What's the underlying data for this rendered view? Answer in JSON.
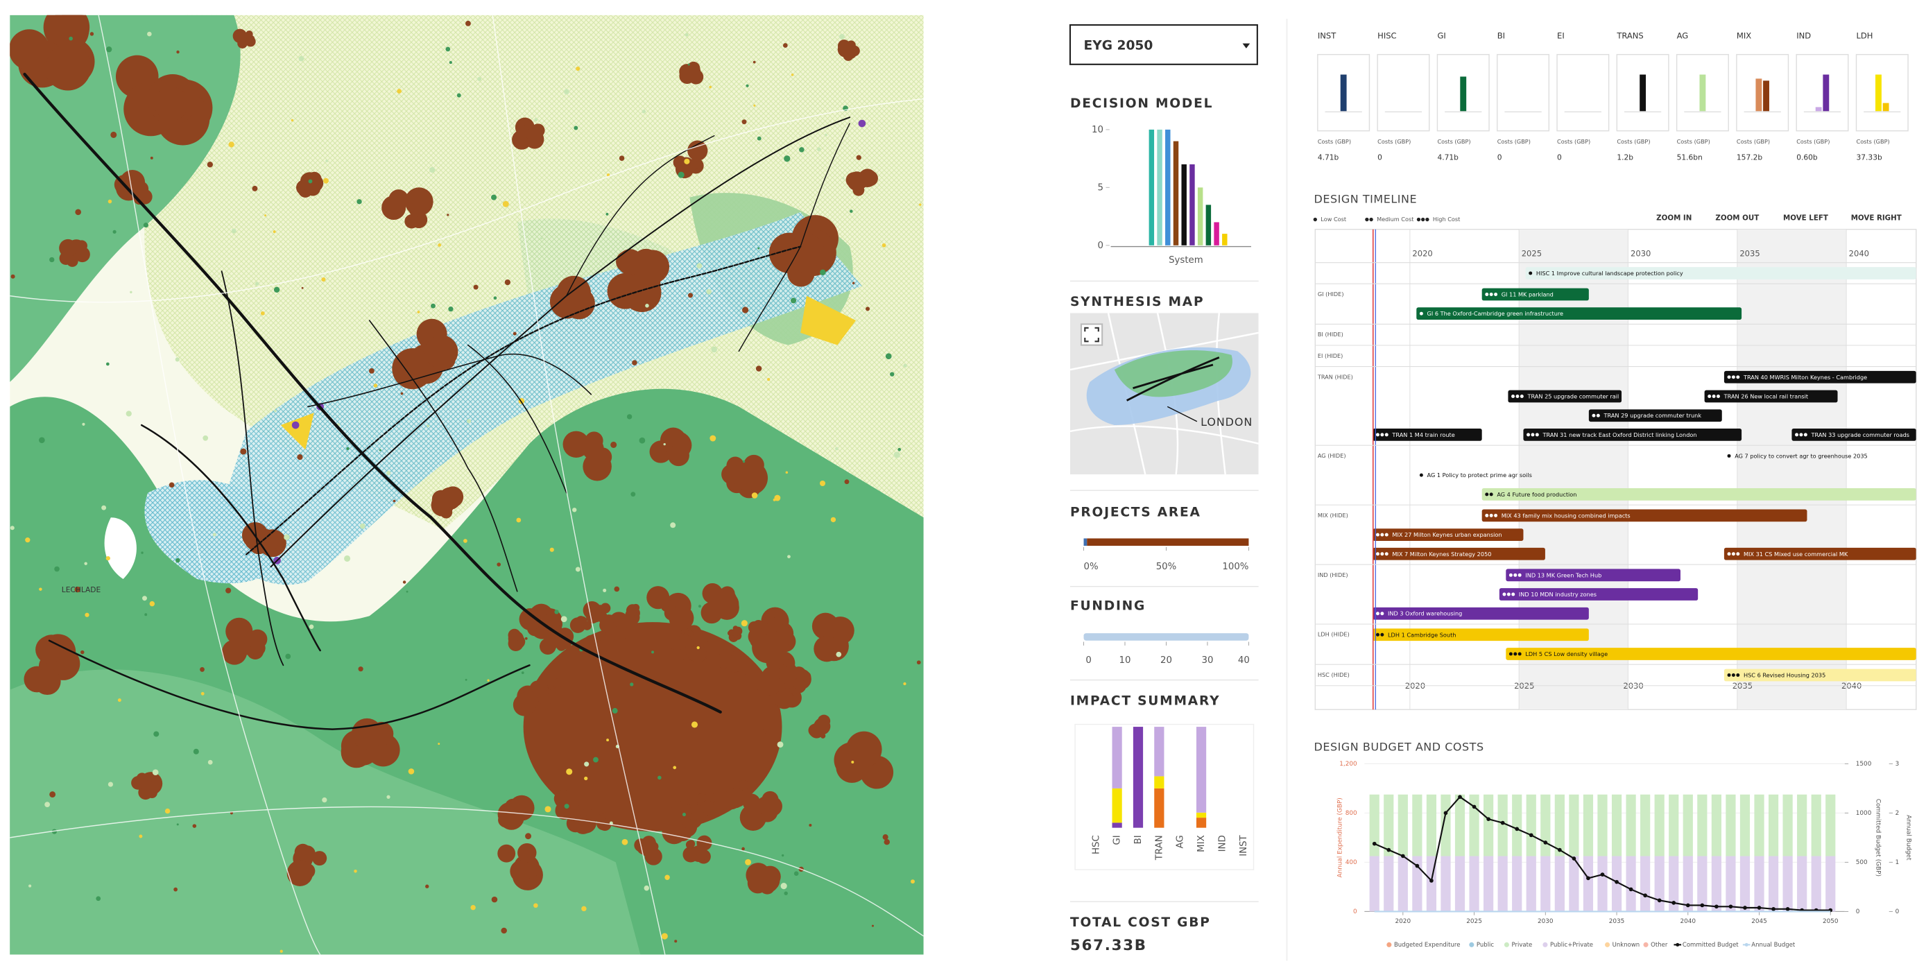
{
  "scenario": "EYG 2050",
  "map": {
    "labels": [
      "LECHLADE"
    ]
  },
  "decision_model": {
    "title": "DECISION MODEL",
    "type": "bar",
    "category": "System",
    "ylim": [
      0,
      10
    ],
    "yticks": [
      0,
      5,
      10
    ],
    "values": [
      10,
      10,
      10,
      9,
      7,
      7,
      5,
      3.5,
      2,
      1
    ],
    "colors": [
      "#2ab5a5",
      "#8ad8c8",
      "#3f8fd8",
      "#8b4513",
      "#111111",
      "#6a2ea0",
      "#b8e08a",
      "#0b6b3a",
      "#d81b9a",
      "#f5d000"
    ]
  },
  "synthesis_map": {
    "title": "SYNTHESIS MAP",
    "label": "LONDON"
  },
  "projects_area": {
    "title": "PROJECTS AREA",
    "xlim": [
      0,
      100
    ],
    "xticks": [
      {
        "value": 0,
        "label": "0%"
      },
      {
        "value": 50,
        "label": "50%"
      },
      {
        "value": 100,
        "label": "100%"
      }
    ],
    "values": [
      2,
      98
    ],
    "colors": [
      "#3f6fb0",
      "#8b3a0f"
    ]
  },
  "funding": {
    "title": "FUNDING",
    "xlim": [
      0,
      40
    ],
    "xticks": [
      0,
      10,
      20,
      30,
      40
    ],
    "value": 40,
    "color": "#b9d0e8"
  },
  "impact_summary": {
    "title": "IMPACT SUMMARY",
    "type": "bar",
    "categories": [
      "HSC",
      "GI",
      "BI",
      "TRAN",
      "AG",
      "MIX",
      "IND",
      "INST"
    ],
    "ylim": [
      0,
      100
    ],
    "series": [
      {
        "color": "#7b3fb0",
        "values": [
          0,
          5,
          100,
          0,
          0,
          0,
          0,
          0
        ]
      },
      {
        "color": "#e8701a",
        "values": [
          0,
          0,
          0,
          39,
          0,
          10,
          0,
          0
        ]
      },
      {
        "color": "#f7e400",
        "values": [
          0,
          34,
          0,
          12,
          0,
          5,
          0,
          0
        ]
      },
      {
        "color": "#c4a8e0",
        "values": [
          0,
          61,
          0,
          49,
          0,
          85,
          0,
          0
        ]
      }
    ]
  },
  "total_cost": {
    "label": "TOTAL COST GBP",
    "value": "567.33B"
  },
  "sectors": {
    "cost_label": "Costs (GBP)",
    "ylim": [
      0,
      10
    ],
    "cards": [
      {
        "label": "INST",
        "values": [
          9
        ],
        "colors": [
          "#1f3f6e"
        ],
        "total": "4.71b"
      },
      {
        "label": "HISC",
        "values": [],
        "colors": [],
        "total": "0"
      },
      {
        "label": "GI",
        "values": [
          8.5
        ],
        "colors": [
          "#0b6b3a"
        ],
        "total": "4.71b"
      },
      {
        "label": "BI",
        "values": [],
        "colors": [],
        "total": "0"
      },
      {
        "label": "EI",
        "values": [],
        "colors": [],
        "total": "0"
      },
      {
        "label": "TRANS",
        "values": [
          9
        ],
        "colors": [
          "#111111"
        ],
        "total": "1.2b"
      },
      {
        "label": "AG",
        "values": [
          9
        ],
        "colors": [
          "#b9e29a"
        ],
        "total": "51.6bn"
      },
      {
        "label": "MIX",
        "values": [
          8,
          7.5
        ],
        "colors": [
          "#d98b5a",
          "#8b3a0f"
        ],
        "total": "157.2b"
      },
      {
        "label": "IND",
        "values": [
          1,
          9
        ],
        "colors": [
          "#c9a8e6",
          "#6a2ea0"
        ],
        "total": "0.60b"
      },
      {
        "label": "LDH",
        "values": [
          9,
          2
        ],
        "colors": [
          "#f7e400",
          "#f5c400"
        ],
        "total": "37.33b"
      }
    ]
  },
  "timeline": {
    "title": "DESIGN TIMELINE",
    "cost_levels": [
      "Low Cost",
      "Medium Cost",
      "High Cost"
    ],
    "controls": [
      "ZOOM IN",
      "ZOOM OUT",
      "MOVE LEFT",
      "MOVE RIGHT"
    ],
    "xlim": [
      2018.2,
      2043.2
    ],
    "xticks": [
      2020,
      2025,
      2030,
      2035,
      2040
    ],
    "rows": [
      {
        "lanes": [
          [
            {
              "name": "HISC 1 Improve cultural landscape protection policy",
              "start": 2025.3,
              "end": 2043.2,
              "cost": 1,
              "color": "#e3f3ef"
            }
          ]
        ]
      },
      {
        "label": "GI (HIDE)",
        "lanes": [
          [
            {
              "name": "GI 11 MK parkland",
              "start": 2023.3,
              "end": 2028.2,
              "cost": 3,
              "color": "#0b6b3a"
            }
          ],
          [
            {
              "name": "GI 6 The Oxford-Cambridge green infrastructure",
              "start": 2020.3,
              "end": 2035.2,
              "cost": 1,
              "color": "#0b6b3a"
            }
          ]
        ]
      },
      {
        "label": "BI (HIDE)",
        "lanes": [
          []
        ]
      },
      {
        "label": "EI (HIDE)",
        "lanes": [
          []
        ]
      },
      {
        "label": "TRAN (HIDE)",
        "lanes": [
          [
            {
              "name": "TRAN 40 MWRIS Milton Keynes - Cambridge",
              "start": 2034.4,
              "end": 2043.2,
              "cost": 3,
              "color": "#111111"
            }
          ],
          [
            {
              "name": "TRAN 25 upgrade commuter rail",
              "start": 2024.5,
              "end": 2029.7,
              "cost": 3,
              "color": "#111111"
            },
            {
              "name": "TRAN 26 New local rail transit",
              "start": 2033.5,
              "end": 2039.6,
              "cost": 3,
              "color": "#111111"
            }
          ],
          [
            {
              "name": "TRAN 29 upgrade commuter trunk",
              "start": 2028.2,
              "end": 2034.3,
              "cost": 2,
              "color": "#111111"
            }
          ],
          [
            {
              "name": "TRAN 1 M4 train route",
              "start": 2018.3,
              "end": 2023.3,
              "cost": 3,
              "color": "#111111"
            },
            {
              "name": "TRAN 31 new track East Oxford District linking London",
              "start": 2025.2,
              "end": 2035.2,
              "cost": 3,
              "color": "#111111"
            },
            {
              "name": "TRAN 33 upgrade commuter roads",
              "start": 2037.5,
              "end": 2043.2,
              "cost": 3,
              "color": "#111111"
            }
          ]
        ]
      },
      {
        "label": "AG (HIDE)",
        "lanes": [
          [
            {
              "name": "AG 7 policy to convert agr to greenhouse 2035",
              "start": 2034.4,
              "end": 2034.4,
              "cost": 1,
              "color": "#b9e29a"
            }
          ],
          [
            {
              "name": "AG 1 Policy to protect prime agr soils",
              "start": 2020.3,
              "end": 2020.3,
              "cost": 1,
              "color": "#b9e29a"
            }
          ],
          [
            {
              "name": "AG 4 Future food production",
              "start": 2023.3,
              "end": 2043.2,
              "cost": 2,
              "color": "#cdeab0"
            }
          ]
        ]
      },
      {
        "label": "MIX (HIDE)",
        "lanes": [
          [
            {
              "name": "MIX 43 family mix housing combined impacts",
              "start": 2023.3,
              "end": 2038.2,
              "cost": 3,
              "color": "#8b3a0f"
            }
          ],
          [
            {
              "name": "MIX 27 Milton Keynes urban expansion",
              "start": 2018.3,
              "end": 2025.2,
              "cost": 3,
              "color": "#8b3a0f"
            }
          ],
          [
            {
              "name": "MIX 7 Milton Keynes Strategy 2050",
              "start": 2018.3,
              "end": 2026.2,
              "cost": 3,
              "color": "#8b3a0f"
            },
            {
              "name": "MIX 31 CS Mixed use commercial MK",
              "start": 2034.4,
              "end": 2043.2,
              "cost": 3,
              "color": "#8b3a0f"
            }
          ]
        ]
      },
      {
        "label": "IND (HIDE)",
        "lanes": [
          [
            {
              "name": "IND 13 MK Green Tech Hub",
              "start": 2024.4,
              "end": 2032.4,
              "cost": 3,
              "color": "#6a2ea0"
            }
          ],
          [
            {
              "name": "IND 10 MDN industry zones",
              "start": 2024.1,
              "end": 2033.2,
              "cost": 3,
              "color": "#6a2ea0"
            }
          ],
          [
            {
              "name": "IND 3 Oxford warehousing",
              "start": 2018.3,
              "end": 2028.2,
              "cost": 2,
              "color": "#6a2ea0"
            }
          ]
        ]
      },
      {
        "label": "LDH (HIDE)",
        "lanes": [
          [
            {
              "name": "LDH 1 Cambridge South",
              "start": 2018.3,
              "end": 2028.2,
              "cost": 2,
              "color": "#f5c800"
            }
          ],
          [
            {
              "name": "LDH 5 CS Low density village",
              "start": 2024.4,
              "end": 2043.2,
              "cost": 3,
              "color": "#f5c800"
            }
          ]
        ]
      },
      {
        "label": "HSC (HIDE)",
        "lanes": [
          [
            {
              "name": "HSC 6 Revised Housing 2035",
              "start": 2034.4,
              "end": 2043.2,
              "cost": 3,
              "color": "#fbefa0"
            }
          ]
        ]
      }
    ]
  },
  "budget": {
    "title": "DESIGN BUDGET AND COSTS",
    "ylabel": "Annual Expenditure (GBP)",
    "y2label": "Committed Budget (GBP)",
    "y3label": "Annual Budget",
    "xlim": [
      2017.3,
      2051
    ],
    "xticks": [
      2020,
      2025,
      2030,
      2035,
      2040,
      2045,
      2050
    ],
    "ylim": [
      0,
      1200
    ],
    "yticks": [
      0,
      400,
      800,
      {
        "value": 1200,
        "label": "1,200"
      }
    ],
    "y2lim": [
      0,
      1500
    ],
    "y2ticks": [
      0,
      500,
      1000,
      1500
    ],
    "y3lim": [
      0,
      3
    ],
    "y3ticks": [
      0,
      1,
      2,
      3
    ],
    "x": [
      2018,
      2019,
      2020,
      2021,
      2022,
      2023,
      2024,
      2025,
      2026,
      2027,
      2028,
      2029,
      2030,
      2031,
      2032,
      2033,
      2034,
      2035,
      2036,
      2037,
      2038,
      2039,
      2040,
      2041,
      2042,
      2043,
      2044,
      2045,
      2046,
      2047,
      2048,
      2049,
      2050
    ],
    "series": [
      {
        "name": "Budgeted Expenditure",
        "type": "bar",
        "color": "#f4a582",
        "values": [
          0,
          0,
          0,
          0,
          0,
          0,
          0,
          0,
          0,
          0,
          0,
          0,
          0,
          0,
          0,
          0,
          0,
          0,
          0,
          0,
          0,
          0,
          0,
          0,
          0,
          0,
          0,
          0,
          0,
          0,
          0,
          0,
          0
        ]
      },
      {
        "name": "Public",
        "type": "bar",
        "color": "#9ecae1",
        "values": [
          0,
          0,
          0,
          0,
          0,
          0,
          0,
          0,
          0,
          0,
          0,
          0,
          0,
          0,
          0,
          0,
          0,
          0,
          0,
          0,
          0,
          0,
          0,
          0,
          0,
          0,
          0,
          0,
          0,
          0,
          0,
          0,
          0
        ]
      },
      {
        "name": "Private",
        "type": "bar",
        "color": "#cdebc4",
        "values": [
          500,
          500,
          500,
          500,
          500,
          500,
          500,
          500,
          500,
          500,
          500,
          500,
          500,
          500,
          500,
          500,
          500,
          500,
          500,
          500,
          500,
          500,
          500,
          500,
          500,
          500,
          500,
          500,
          500,
          500,
          500,
          500,
          500
        ]
      },
      {
        "name": "Public+Private",
        "type": "bar",
        "color": "#ddd0ec",
        "values": [
          450,
          450,
          450,
          450,
          450,
          450,
          450,
          450,
          450,
          450,
          450,
          450,
          450,
          450,
          450,
          450,
          450,
          450,
          450,
          450,
          450,
          450,
          450,
          450,
          450,
          450,
          450,
          450,
          450,
          450,
          450,
          450,
          450
        ]
      },
      {
        "name": "Unknown",
        "type": "bar",
        "color": "#fdd49e",
        "values": [
          0,
          0,
          0,
          0,
          0,
          0,
          0,
          0,
          0,
          0,
          0,
          0,
          0,
          0,
          0,
          0,
          0,
          0,
          0,
          0,
          0,
          0,
          0,
          0,
          0,
          0,
          0,
          0,
          0,
          0,
          0,
          0,
          0
        ]
      },
      {
        "name": "Other",
        "type": "bar",
        "color": "#f7b6a8",
        "values": [
          0,
          0,
          0,
          0,
          0,
          0,
          0,
          0,
          0,
          0,
          0,
          0,
          0,
          0,
          0,
          0,
          0,
          0,
          0,
          0,
          0,
          0,
          0,
          0,
          0,
          0,
          0,
          0,
          0,
          0,
          0,
          0,
          0
        ]
      },
      {
        "name": "Committed Budget",
        "type": "line",
        "axis": "y2",
        "color": "#111111",
        "values": [
          688,
          625,
          563,
          463,
          313,
          1000,
          1163,
          1063,
          938,
          900,
          838,
          775,
          700,
          625,
          538,
          338,
          375,
          300,
          225,
          163,
          113,
          88,
          63,
          63,
          50,
          50,
          38,
          38,
          25,
          25,
          13,
          13,
          13
        ]
      },
      {
        "name": "Annual Budget",
        "type": "line",
        "axis": "y3",
        "color": "#b9d6ee",
        "values": [
          0,
          0,
          0,
          0,
          0,
          0,
          0,
          0,
          0,
          0,
          0,
          0,
          0,
          0,
          0,
          0,
          0,
          0,
          0,
          0,
          0,
          0,
          0,
          0,
          0,
          0,
          0,
          0,
          0,
          0,
          0,
          0,
          0
        ]
      }
    ]
  }
}
